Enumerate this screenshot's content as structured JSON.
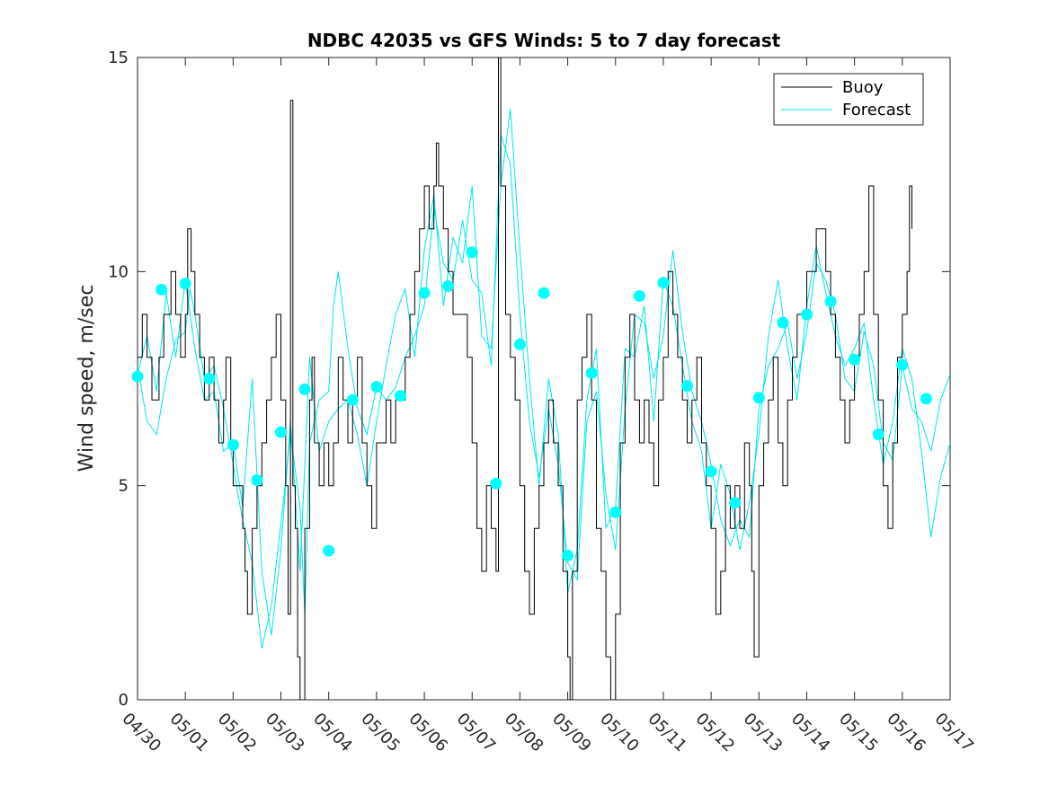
{
  "chart_data": {
    "type": "line",
    "title": "NDBC 42035 vs GFS Winds: 5 to 7 day forecast",
    "ylabel": "Wind speed, m/sec",
    "xlabel": "",
    "ylim": [
      0,
      15
    ],
    "xlim": [
      "04/30",
      "05/17"
    ],
    "yticks": [
      0,
      5,
      10,
      15
    ],
    "xtick_labels": [
      "04/30",
      "05/01",
      "05/02",
      "05/03",
      "05/04",
      "05/05",
      "05/06",
      "05/07",
      "05/08",
      "05/09",
      "05/10",
      "05/11",
      "05/12",
      "05/13",
      "05/14",
      "05/15",
      "05/16",
      "05/17"
    ],
    "legend": {
      "placement": "top-right",
      "entries": [
        "Buoy",
        "Forecast"
      ]
    },
    "grid": false,
    "colors": {
      "buoy": "#000000",
      "forecast": "#00e5ee",
      "markers": "#00ffff",
      "axes": "#262626"
    },
    "buoy_day": [
      0.0,
      8,
      0.1,
      9,
      0.2,
      8,
      0.3,
      7,
      0.45,
      8,
      0.55,
      9,
      0.7,
      10,
      0.8,
      9,
      0.9,
      8,
      1.0,
      9,
      1.05,
      11,
      1.12,
      10,
      1.2,
      9,
      1.3,
      8,
      1.4,
      7,
      1.5,
      8,
      1.6,
      7,
      1.7,
      6,
      1.8,
      7,
      1.85,
      8,
      1.95,
      6,
      2.0,
      5,
      2.1,
      5,
      2.2,
      4,
      2.25,
      3,
      2.3,
      2,
      2.4,
      4,
      2.5,
      5,
      2.6,
      6,
      2.7,
      7,
      2.8,
      8,
      2.9,
      9,
      3.0,
      7,
      3.1,
      5,
      3.15,
      2,
      3.2,
      14,
      3.25,
      5,
      3.3,
      4,
      3.35,
      1,
      3.4,
      0,
      3.5,
      4,
      3.6,
      7,
      3.65,
      8,
      3.7,
      6,
      3.8,
      5,
      3.9,
      6,
      4.0,
      5,
      4.1,
      6,
      4.2,
      8,
      4.3,
      7,
      4.4,
      6,
      4.5,
      7,
      4.6,
      8,
      4.7,
      6,
      4.8,
      5,
      4.9,
      4,
      5.0,
      6,
      5.1,
      6,
      5.2,
      7,
      5.3,
      6,
      5.4,
      7,
      5.5,
      7,
      5.6,
      8,
      5.7,
      9,
      5.8,
      10,
      5.9,
      11,
      6.0,
      12,
      6.1,
      11,
      6.2,
      12,
      6.25,
      13,
      6.3,
      12,
      6.4,
      11,
      6.5,
      10,
      6.6,
      9,
      6.7,
      9,
      6.8,
      9,
      6.9,
      8,
      7.0,
      6,
      7.1,
      4,
      7.2,
      3,
      7.3,
      5,
      7.4,
      4,
      7.5,
      3,
      7.55,
      15,
      7.6,
      12,
      7.7,
      9,
      7.8,
      8,
      7.9,
      7,
      8.0,
      5,
      8.1,
      3,
      8.2,
      2,
      8.3,
      4,
      8.4,
      5,
      8.5,
      6,
      8.6,
      7,
      8.7,
      6,
      8.8,
      5,
      8.9,
      3,
      9.0,
      1,
      9.05,
      0,
      9.1,
      3,
      9.2,
      7,
      9.3,
      8,
      9.4,
      9,
      9.5,
      7,
      9.6,
      4,
      9.7,
      3,
      9.8,
      1,
      9.9,
      0,
      10.0,
      2,
      10.1,
      6,
      10.2,
      8,
      10.3,
      9,
      10.4,
      7,
      10.5,
      6,
      10.6,
      7,
      10.7,
      6,
      10.8,
      5,
      10.9,
      7,
      11.0,
      8,
      11.1,
      10,
      11.2,
      9,
      11.3,
      8,
      11.4,
      7,
      11.5,
      6,
      11.6,
      7,
      11.7,
      8,
      11.8,
      6,
      11.9,
      5,
      12.0,
      4,
      12.1,
      2,
      12.2,
      3,
      12.3,
      5,
      12.4,
      4,
      12.5,
      5,
      12.6,
      4,
      12.7,
      6,
      12.8,
      5,
      12.85,
      3,
      12.9,
      1,
      13.0,
      5,
      13.1,
      6,
      13.2,
      7,
      13.3,
      8,
      13.4,
      6,
      13.5,
      5,
      13.6,
      7,
      13.7,
      8,
      13.8,
      9,
      13.9,
      9,
      14.0,
      10,
      14.1,
      10,
      14.2,
      11,
      14.3,
      11,
      14.4,
      10,
      14.5,
      9,
      14.6,
      8,
      14.7,
      7,
      14.8,
      6,
      14.9,
      7,
      15.0,
      8,
      15.1,
      9,
      15.2,
      10,
      15.3,
      12,
      15.4,
      9,
      15.5,
      7,
      15.6,
      5,
      15.7,
      4,
      15.8,
      6,
      15.9,
      8,
      16.0,
      9,
      16.1,
      10,
      16.15,
      12,
      16.2,
      11
    ],
    "forecast_day": [
      0.0,
      7.8,
      0.2,
      6.5,
      0.4,
      6.2,
      0.6,
      7.5,
      0.8,
      8.4,
      1.0,
      8.6,
      1.1,
      9.6,
      1.2,
      9.0,
      1.4,
      7.5,
      1.6,
      7.8,
      1.8,
      6.8,
      2.0,
      5.5,
      2.1,
      4.8,
      2.2,
      4.2,
      2.4,
      3.2,
      2.6,
      1.2,
      2.8,
      2.2,
      3.0,
      4.1,
      3.2,
      6.2,
      3.4,
      4.5,
      3.5,
      2.0,
      3.6,
      6.0,
      3.8,
      7.0,
      4.0,
      7.2,
      4.1,
      9.2,
      4.2,
      10.0,
      4.4,
      8.2,
      4.6,
      6.8,
      4.8,
      6.2,
      5.0,
      7.3,
      5.2,
      7.0,
      5.4,
      7.3,
      5.6,
      8.0,
      5.8,
      8.5,
      6.0,
      9.2,
      6.2,
      11.5,
      6.4,
      10.2,
      6.6,
      9.8,
      6.8,
      11.2,
      7.0,
      9.8,
      7.2,
      9.5,
      7.4,
      7.8,
      7.6,
      13.2,
      7.8,
      12.5,
      8.0,
      9.0,
      8.2,
      6.5,
      8.4,
      5.2,
      8.6,
      6.8,
      8.8,
      5.5,
      9.0,
      3.2,
      9.2,
      2.8,
      9.4,
      6.5,
      9.6,
      7.2,
      9.8,
      4.8,
      10.0,
      3.5,
      10.2,
      6.8,
      10.4,
      9.0,
      10.6,
      8.8,
      10.8,
      7.5,
      11.0,
      8.5,
      11.2,
      10.5,
      11.4,
      8.6,
      11.6,
      7.2,
      11.8,
      6.5,
      12.0,
      5.5,
      12.2,
      4.2,
      12.4,
      3.6,
      12.6,
      4.2,
      12.8,
      3.8,
      13.0,
      6.8,
      13.2,
      7.8,
      13.4,
      8.2,
      13.6,
      8.8,
      13.8,
      7.5,
      14.0,
      8.6,
      14.2,
      10.2,
      14.4,
      9.8,
      14.6,
      9.0,
      14.8,
      7.5,
      15.0,
      7.2,
      15.2,
      8.6,
      15.4,
      7.8,
      15.6,
      6.0,
      15.8,
      5.6,
      16.0,
      7.8,
      16.2,
      6.8,
      16.4,
      6.5,
      16.6,
      5.8,
      16.8,
      7.0,
      17.0,
      7.6
    ],
    "forecast_day_2": [
      0.0,
      7.6,
      0.2,
      8.5,
      0.4,
      7.2,
      0.6,
      9.5,
      0.8,
      8.0,
      1.0,
      9.8,
      1.2,
      8.2,
      1.4,
      7.0,
      1.6,
      7.2,
      1.8,
      5.8,
      2.0,
      6.0,
      2.2,
      4.5,
      2.4,
      7.5,
      2.6,
      3.0,
      2.8,
      1.5,
      3.0,
      3.5,
      3.2,
      6.5,
      3.4,
      3.0,
      3.6,
      8.0,
      3.8,
      5.8,
      4.0,
      6.5,
      4.2,
      6.8,
      4.4,
      7.0,
      4.6,
      6.2,
      4.8,
      5.0,
      5.0,
      6.5,
      5.2,
      7.8,
      5.4,
      9.0,
      5.6,
      9.6,
      5.8,
      8.0,
      6.0,
      10.5,
      6.2,
      11.8,
      6.4,
      9.2,
      6.6,
      10.8,
      6.8,
      10.2,
      7.0,
      12.0,
      7.2,
      8.5,
      7.4,
      8.2,
      7.6,
      12.0,
      7.8,
      13.8,
      8.0,
      10.5,
      8.2,
      7.5,
      8.4,
      5.0,
      8.6,
      7.5,
      8.8,
      6.2,
      9.0,
      2.5,
      9.2,
      3.5,
      9.4,
      7.0,
      9.6,
      8.2,
      9.8,
      4.0,
      10.0,
      4.5,
      10.2,
      8.2,
      10.4,
      8.0,
      10.6,
      9.2,
      10.8,
      6.5,
      11.0,
      9.8,
      11.2,
      9.2,
      11.4,
      7.8,
      11.6,
      6.5,
      11.8,
      5.8,
      12.0,
      4.0,
      12.2,
      5.5,
      12.4,
      4.8,
      12.6,
      3.5,
      12.8,
      4.6,
      13.0,
      6.2,
      13.2,
      8.5,
      13.4,
      9.8,
      13.6,
      8.2,
      13.8,
      7.0,
      14.0,
      9.2,
      14.2,
      10.6,
      14.4,
      9.5,
      14.6,
      8.5,
      14.8,
      7.8,
      15.0,
      8.2,
      15.2,
      8.8,
      15.4,
      7.0,
      15.6,
      5.5,
      15.8,
      6.5,
      16.0,
      8.2,
      16.2,
      7.5,
      16.4,
      5.8,
      16.6,
      3.8,
      16.8,
      5.2,
      17.0,
      6.0
    ],
    "markers_day": [
      0.0,
      7.55,
      0.5,
      9.58,
      1.0,
      9.72,
      1.5,
      7.5,
      2.0,
      5.95,
      2.5,
      5.13,
      3.0,
      6.25,
      3.5,
      7.25,
      4.0,
      3.48,
      4.5,
      7.0,
      5.0,
      7.31,
      5.5,
      7.1,
      6.0,
      9.5,
      6.5,
      9.66,
      7.0,
      10.45,
      7.5,
      5.05,
      8.0,
      8.3,
      8.5,
      9.5,
      9.0,
      3.37,
      9.5,
      7.63,
      10.0,
      4.38,
      10.5,
      9.43,
      11.0,
      9.74,
      11.5,
      7.33,
      12.0,
      5.33,
      12.5,
      4.6,
      13.0,
      7.05,
      13.5,
      8.81,
      14.0,
      9.0,
      14.5,
      9.3,
      15.0,
      7.95,
      15.5,
      6.2,
      16.0,
      7.82,
      16.5,
      7.03
    ]
  }
}
